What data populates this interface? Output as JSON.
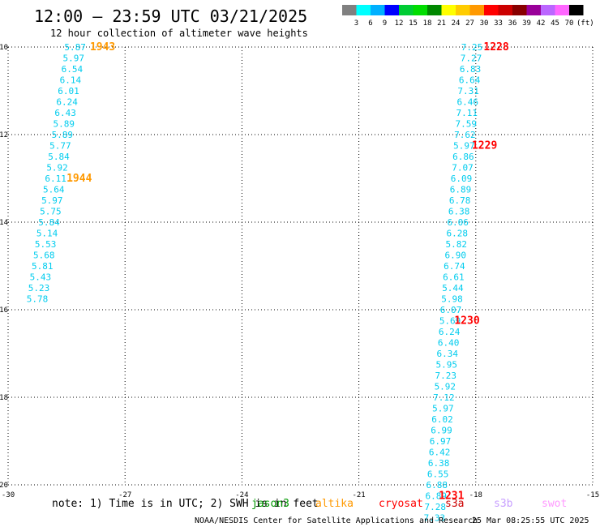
{
  "header": {
    "title": "12:00 — 23:59 UTC 03/21/2025",
    "subtitle": "12 hour collection of altimeter wave heights"
  },
  "colorbar": {
    "labels": [
      "3",
      "6",
      "9",
      "12",
      "15",
      "18",
      "21",
      "24",
      "27",
      "30",
      "33",
      "36",
      "39",
      "42",
      "45",
      "70"
    ],
    "unit": "(ft)",
    "colors": [
      "#808080",
      "#00ffff",
      "#00b0ff",
      "#0000ff",
      "#00cc33",
      "#00dd00",
      "#008800",
      "#ffff00",
      "#ffcc00",
      "#ff9900",
      "#ff0000",
      "#cc0000",
      "#880000",
      "#990099",
      "#bb66ff",
      "#ff66ff",
      "#000000"
    ]
  },
  "footer": {
    "note": "note: 1) Time is in UTC; 2) SWH is in feet",
    "satellites": [
      {
        "name": "jason3",
        "color": "#009900"
      },
      {
        "name": "altika",
        "color": "#ff9900"
      },
      {
        "name": "cryosat",
        "color": "#ff0000"
      },
      {
        "name": "s3a",
        "color": "#cc0000"
      },
      {
        "name": "s3b",
        "color": "#c8a0ff"
      },
      {
        "name": "swot",
        "color": "#ff99ff"
      }
    ],
    "credit": "NOAA/NESDIS Center for Satellite Applications and Research",
    "timestamp": "25 Mar 08:25:55 UTC 2025"
  },
  "chart_data": {
    "type": "scatter",
    "xlim": [
      -30,
      -15
    ],
    "ylim": [
      -20,
      -10
    ],
    "xticks": [
      "-30",
      "-27",
      "-24",
      "-21",
      "-18",
      "-15"
    ],
    "yticks": [
      "-10",
      "-12",
      "-14",
      "-16",
      "-18",
      "-20"
    ],
    "grid": true,
    "series": [
      {
        "name": "altika",
        "color": "#00ccee",
        "points": [
          {
            "x": -28.28,
            "y": -10.0,
            "v": "5.87"
          },
          {
            "x": -28.32,
            "y": -10.25,
            "v": "5.97"
          },
          {
            "x": -28.36,
            "y": -10.5,
            "v": "6.54"
          },
          {
            "x": -28.4,
            "y": -10.75,
            "v": "6.14"
          },
          {
            "x": -28.45,
            "y": -11.0,
            "v": "6.01"
          },
          {
            "x": -28.49,
            "y": -11.25,
            "v": "6.24"
          },
          {
            "x": -28.53,
            "y": -11.5,
            "v": "6.43"
          },
          {
            "x": -28.57,
            "y": -11.75,
            "v": "5.89"
          },
          {
            "x": -28.61,
            "y": -12.0,
            "v": "5.89"
          },
          {
            "x": -28.66,
            "y": -12.25,
            "v": "5.77"
          },
          {
            "x": -28.7,
            "y": -12.5,
            "v": "5.84"
          },
          {
            "x": -28.74,
            "y": -12.75,
            "v": "5.92"
          },
          {
            "x": -28.78,
            "y": -13.0,
            "v": "6.11"
          },
          {
            "x": -28.83,
            "y": -13.25,
            "v": "5.64"
          },
          {
            "x": -28.87,
            "y": -13.5,
            "v": "5.97"
          },
          {
            "x": -28.91,
            "y": -13.75,
            "v": "5.75"
          },
          {
            "x": -28.95,
            "y": -14.0,
            "v": "5.84"
          },
          {
            "x": -29.0,
            "y": -14.25,
            "v": "5.14"
          },
          {
            "x": -29.04,
            "y": -14.5,
            "v": "5.53"
          },
          {
            "x": -29.08,
            "y": -14.75,
            "v": "5.68"
          },
          {
            "x": -29.12,
            "y": -15.0,
            "v": "5.81"
          },
          {
            "x": -29.17,
            "y": -15.25,
            "v": "5.43"
          },
          {
            "x": -29.21,
            "y": -15.5,
            "v": "5.23"
          },
          {
            "x": -29.25,
            "y": -15.75,
            "v": "5.78"
          }
        ]
      },
      {
        "name": "cryosat",
        "color": "#00ccee",
        "points": [
          {
            "x": -18.1,
            "y": -10.0,
            "v": "7.25"
          },
          {
            "x": -18.12,
            "y": -10.25,
            "v": "7.27"
          },
          {
            "x": -18.14,
            "y": -10.5,
            "v": "6.83"
          },
          {
            "x": -18.16,
            "y": -10.75,
            "v": "6.64"
          },
          {
            "x": -18.19,
            "y": -11.0,
            "v": "7.31"
          },
          {
            "x": -18.21,
            "y": -11.25,
            "v": "6.46"
          },
          {
            "x": -18.23,
            "y": -11.5,
            "v": "7.11"
          },
          {
            "x": -18.25,
            "y": -11.75,
            "v": "7.59"
          },
          {
            "x": -18.28,
            "y": -12.0,
            "v": "7.62"
          },
          {
            "x": -18.3,
            "y": -12.25,
            "v": "5.97"
          },
          {
            "x": -18.32,
            "y": -12.5,
            "v": "6.86"
          },
          {
            "x": -18.34,
            "y": -12.75,
            "v": "7.07"
          },
          {
            "x": -18.37,
            "y": -13.0,
            "v": "6.09"
          },
          {
            "x": -18.39,
            "y": -13.25,
            "v": "6.89"
          },
          {
            "x": -18.41,
            "y": -13.5,
            "v": "6.78"
          },
          {
            "x": -18.43,
            "y": -13.75,
            "v": "6.38"
          },
          {
            "x": -18.46,
            "y": -14.0,
            "v": "6.06"
          },
          {
            "x": -18.48,
            "y": -14.25,
            "v": "6.28"
          },
          {
            "x": -18.5,
            "y": -14.5,
            "v": "5.82"
          },
          {
            "x": -18.52,
            "y": -14.75,
            "v": "6.90"
          },
          {
            "x": -18.55,
            "y": -15.0,
            "v": "6.74"
          },
          {
            "x": -18.57,
            "y": -15.25,
            "v": "6.61"
          },
          {
            "x": -18.59,
            "y": -15.5,
            "v": "5.44"
          },
          {
            "x": -18.61,
            "y": -15.75,
            "v": "5.98"
          },
          {
            "x": -18.64,
            "y": -16.0,
            "v": "6.07"
          },
          {
            "x": -18.66,
            "y": -16.25,
            "v": "5.69"
          },
          {
            "x": -18.68,
            "y": -16.5,
            "v": "6.24"
          },
          {
            "x": -18.7,
            "y": -16.75,
            "v": "6.40"
          },
          {
            "x": -18.73,
            "y": -17.0,
            "v": "6.34"
          },
          {
            "x": -18.75,
            "y": -17.25,
            "v": "5.95"
          },
          {
            "x": -18.77,
            "y": -17.5,
            "v": "7.23"
          },
          {
            "x": -18.79,
            "y": -17.75,
            "v": "5.92"
          },
          {
            "x": -18.82,
            "y": -18.0,
            "v": "7.12"
          },
          {
            "x": -18.84,
            "y": -18.25,
            "v": "5.97"
          },
          {
            "x": -18.86,
            "y": -18.5,
            "v": "6.02"
          },
          {
            "x": -18.88,
            "y": -18.75,
            "v": "6.99"
          },
          {
            "x": -18.91,
            "y": -19.0,
            "v": "6.97"
          },
          {
            "x": -18.93,
            "y": -19.25,
            "v": "6.42"
          },
          {
            "x": -18.95,
            "y": -19.5,
            "v": "6.38"
          },
          {
            "x": -18.97,
            "y": -19.75,
            "v": "6.55"
          },
          {
            "x": -19.0,
            "y": -20.0,
            "v": "6.88"
          },
          {
            "x": -19.02,
            "y": -20.25,
            "v": "6.89"
          },
          {
            "x": -19.04,
            "y": -20.5,
            "v": "7.28"
          },
          {
            "x": -19.06,
            "y": -20.75,
            "v": "7.33"
          }
        ]
      }
    ],
    "annotations": [
      {
        "x": -27.9,
        "y": -10.0,
        "text": "1943",
        "color": "#ff9900"
      },
      {
        "x": -28.5,
        "y": -13.0,
        "text": "1944",
        "color": "#ff9900"
      },
      {
        "x": -17.8,
        "y": -10.0,
        "text": "1228",
        "color": "#ff0000"
      },
      {
        "x": -18.1,
        "y": -12.25,
        "text": "1229",
        "color": "#ff0000"
      },
      {
        "x": -18.55,
        "y": -16.25,
        "text": "1230",
        "color": "#ff0000"
      },
      {
        "x": -18.95,
        "y": -20.25,
        "text": "1231",
        "color": "#ff0000"
      }
    ]
  }
}
